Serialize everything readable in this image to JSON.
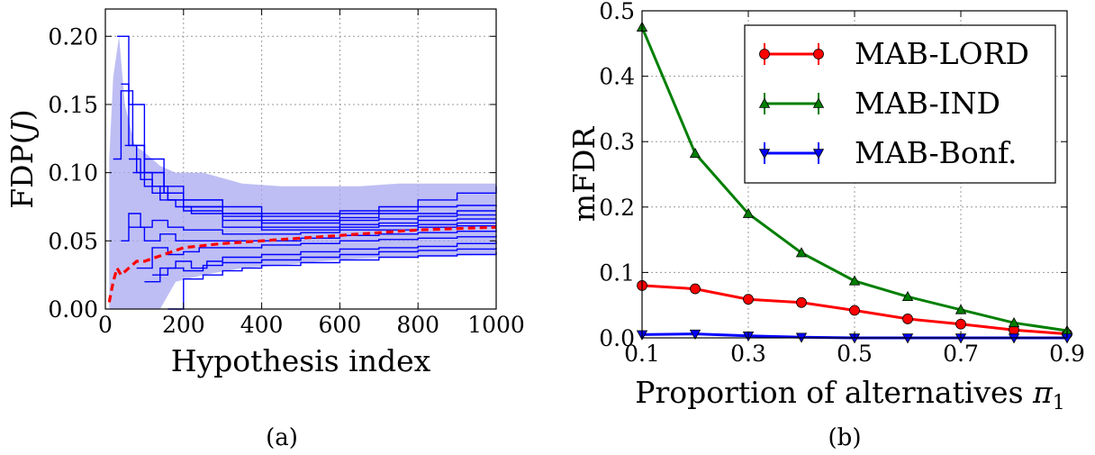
{
  "chart_data": [
    {
      "type": "line",
      "panel_caption": "(a)",
      "xlabel": "Hypothesis index",
      "ylabel": "FDP(J)",
      "xlim": [
        0,
        1000
      ],
      "ylim": [
        0,
        0.22
      ],
      "xticks": [
        0,
        200,
        400,
        600,
        800,
        1000
      ],
      "xtick_labels": [
        "0",
        "200",
        "400",
        "600",
        "800",
        "1000"
      ],
      "yticks": [
        0.0,
        0.05,
        0.1,
        0.15,
        0.2
      ],
      "ytick_labels": [
        "0.00",
        "0.05",
        "0.10",
        "0.15",
        "0.20"
      ],
      "grid": true,
      "colors": {
        "trajectories": "#0000ff",
        "band": "#a8a8f0",
        "mean": "#ff0000"
      },
      "band": {
        "x": [
          10,
          20,
          35,
          50,
          75,
          100,
          140,
          180,
          250,
          350,
          450,
          550,
          650,
          750,
          850,
          1000
        ],
        "lower": [
          0,
          0,
          0,
          0,
          0,
          0,
          0,
          0.02,
          0.025,
          0.03,
          0.032,
          0.035,
          0.037,
          0.038,
          0.039,
          0.04
        ],
        "upper": [
          0.11,
          0.17,
          0.2,
          0.15,
          0.12,
          0.115,
          0.105,
          0.1,
          0.1,
          0.092,
          0.09,
          0.09,
          0.09,
          0.092,
          0.092,
          0.092
        ]
      },
      "mean_series": {
        "x": [
          10,
          20,
          30,
          40,
          60,
          80,
          100,
          150,
          200,
          300,
          400,
          500,
          600,
          700,
          800,
          900,
          1000
        ],
        "y": [
          0.005,
          0.02,
          0.03,
          0.025,
          0.03,
          0.035,
          0.035,
          0.04,
          0.045,
          0.048,
          0.05,
          0.052,
          0.054,
          0.056,
          0.058,
          0.059,
          0.06
        ]
      },
      "trajectories": [
        {
          "x": [
            30,
            60,
            100,
            150,
            200,
            300,
            400,
            500,
            600,
            700,
            800,
            900,
            1000
          ],
          "y": [
            0.2,
            0.15,
            0.11,
            0.09,
            0.08,
            0.075,
            0.07,
            0.07,
            0.072,
            0.075,
            0.08,
            0.085,
            0.09
          ]
        },
        {
          "x": [
            20,
            40,
            70,
            100,
            150,
            200,
            300,
            400,
            500,
            600,
            700,
            800,
            900,
            1000
          ],
          "y": [
            0.11,
            0.16,
            0.12,
            0.1,
            0.085,
            0.075,
            0.07,
            0.068,
            0.068,
            0.07,
            0.072,
            0.075,
            0.076,
            0.075
          ]
        },
        {
          "x": [
            40,
            60,
            100,
            150,
            200,
            300,
            400,
            500,
            600,
            700,
            800,
            900,
            1000
          ],
          "y": [
            0.165,
            0.12,
            0.1,
            0.085,
            0.08,
            0.07,
            0.065,
            0.065,
            0.067,
            0.07,
            0.07,
            0.072,
            0.072
          ]
        },
        {
          "x": [
            50,
            80,
            120,
            160,
            200,
            300,
            400,
            500,
            600,
            700,
            800,
            900,
            1000
          ],
          "y": [
            0.12,
            0.1,
            0.09,
            0.08,
            0.075,
            0.068,
            0.063,
            0.063,
            0.065,
            0.066,
            0.068,
            0.069,
            0.069
          ]
        },
        {
          "x": [
            60,
            90,
            120,
            160,
            200,
            300,
            400,
            500,
            600,
            700,
            800,
            900,
            1000
          ],
          "y": [
            0.11,
            0.095,
            0.085,
            0.08,
            0.072,
            0.065,
            0.06,
            0.06,
            0.062,
            0.063,
            0.065,
            0.066,
            0.066
          ]
        },
        {
          "x": [
            70,
            100,
            140,
            180,
            220,
            300,
            400,
            500,
            600,
            700,
            800,
            900,
            1000
          ],
          "y": [
            0.1,
            0.09,
            0.08,
            0.075,
            0.07,
            0.06,
            0.058,
            0.058,
            0.06,
            0.061,
            0.062,
            0.063,
            0.063
          ]
        },
        {
          "x": [
            40,
            60,
            90,
            120,
            160,
            200,
            300,
            400,
            500,
            600,
            700,
            800,
            900,
            1000
          ],
          "y": [
            0.05,
            0.07,
            0.06,
            0.065,
            0.06,
            0.058,
            0.055,
            0.055,
            0.056,
            0.058,
            0.058,
            0.06,
            0.061,
            0.061
          ]
        },
        {
          "x": [
            60,
            100,
            140,
            180,
            220,
            300,
            400,
            500,
            600,
            700,
            800,
            900,
            1000
          ],
          "y": [
            0.06,
            0.05,
            0.055,
            0.05,
            0.05,
            0.05,
            0.05,
            0.052,
            0.054,
            0.055,
            0.056,
            0.057,
            0.058
          ]
        },
        {
          "x": [
            80,
            120,
            160,
            200,
            240,
            300,
            400,
            500,
            600,
            700,
            800,
            900,
            1000
          ],
          "y": [
            0.03,
            0.045,
            0.04,
            0.042,
            0.045,
            0.045,
            0.047,
            0.048,
            0.05,
            0.051,
            0.052,
            0.053,
            0.054
          ]
        },
        {
          "x": [
            100,
            140,
            180,
            220,
            260,
            300,
            400,
            500,
            600,
            700,
            800,
            900,
            1000
          ],
          "y": [
            0.02,
            0.03,
            0.035,
            0.03,
            0.035,
            0.038,
            0.04,
            0.042,
            0.044,
            0.045,
            0.046,
            0.048,
            0.05
          ]
        },
        {
          "x": [
            120,
            160,
            200,
            250,
            300,
            400,
            500,
            600,
            700,
            800,
            900,
            1000
          ],
          "y": [
            0.025,
            0.03,
            0.028,
            0.032,
            0.034,
            0.036,
            0.038,
            0.04,
            0.042,
            0.043,
            0.044,
            0.045
          ]
        },
        {
          "x": [
            160,
            200,
            250,
            300,
            350,
            400,
            500,
            600,
            700,
            800,
            900,
            1000
          ],
          "y": [
            0.0,
            0.022,
            0.025,
            0.028,
            0.03,
            0.032,
            0.034,
            0.036,
            0.038,
            0.039,
            0.04,
            0.042
          ]
        }
      ]
    },
    {
      "type": "line",
      "panel_caption": "(b)",
      "xlabel": "Proportion of alternatives π1",
      "ylabel": "mFDR",
      "xlim": [
        0.1,
        0.9
      ],
      "ylim": [
        0,
        0.5
      ],
      "xticks": [
        0.1,
        0.3,
        0.5,
        0.7,
        0.9
      ],
      "xtick_labels": [
        "0.1",
        "0.3",
        "0.5",
        "0.7",
        "0.9"
      ],
      "yticks": [
        0.0,
        0.1,
        0.2,
        0.3,
        0.4,
        0.5
      ],
      "ytick_labels": [
        "0.0",
        "0.1",
        "0.2",
        "0.3",
        "0.4",
        "0.5"
      ],
      "grid": true,
      "legend_position": "top-right",
      "x": [
        0.1,
        0.2,
        0.3,
        0.4,
        0.5,
        0.6,
        0.7,
        0.8,
        0.9
      ],
      "series": [
        {
          "name": "MAB-LORD",
          "color": "#ff0000",
          "marker": "circle",
          "values": [
            0.08,
            0.075,
            0.059,
            0.054,
            0.042,
            0.029,
            0.021,
            0.012,
            0.006
          ]
        },
        {
          "name": "MAB-IND",
          "color": "#007f00",
          "marker": "triangle-up",
          "values": [
            0.475,
            0.282,
            0.19,
            0.13,
            0.087,
            0.063,
            0.043,
            0.023,
            0.011
          ]
        },
        {
          "name": "MAB-Bonf.",
          "color": "#0000ff",
          "marker": "triangle-down",
          "values": [
            0.005,
            0.006,
            0.003,
            0.001,
            0.0,
            0.0,
            0.0,
            0.0,
            0.0
          ]
        }
      ]
    }
  ]
}
